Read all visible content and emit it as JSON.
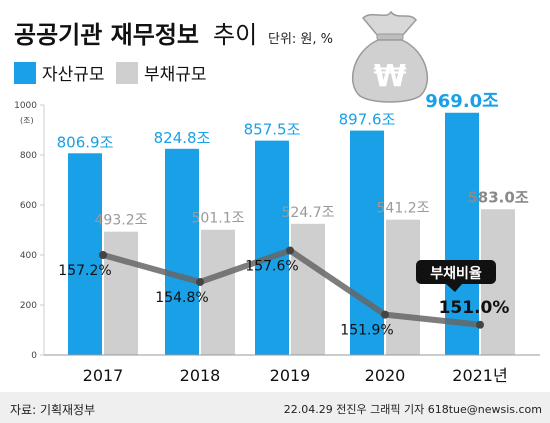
{
  "header": {
    "title_bold": "공공기관 재무정보",
    "title_light": "추이",
    "unit": "단위: 원, %"
  },
  "chart_data": {
    "type": "bar",
    "categories": [
      "2017",
      "2018",
      "2019",
      "2020",
      "2021년"
    ],
    "ylim": [
      0,
      1000
    ],
    "ylabel": "(조)",
    "y_ticks": [
      0,
      200,
      400,
      600,
      800,
      1000
    ],
    "grid": false,
    "legend_position": "top-left",
    "series": [
      {
        "name": "자산규모",
        "values": [
          806.9,
          824.8,
          857.5,
          897.6,
          969.0
        ],
        "labels": [
          "806.9조",
          "824.8조",
          "857.5조",
          "897.6조",
          "969.0조"
        ],
        "color": "#1aa0e6"
      },
      {
        "name": "부채규모",
        "values": [
          493.2,
          501.1,
          524.7,
          541.2,
          583.0
        ],
        "labels": [
          "493.2조",
          "501.1조",
          "524.7조",
          "541.2조",
          "583.0조"
        ],
        "color": "#cfcfcf"
      }
    ],
    "ratio_line": {
      "name": "부채비율",
      "values": [
        157.2,
        154.8,
        157.6,
        151.9,
        151.0
      ],
      "labels": [
        "157.2%",
        "154.8%",
        "157.6%",
        "151.9%",
        "151.0%"
      ],
      "color": "#666666"
    }
  },
  "footer": {
    "source": "자료: 기획재정부",
    "credit": "22.04.29 전진우 그래픽 기자 618tue@newsis.com"
  },
  "icon": {
    "name": "money-bag-icon",
    "symbol": "₩"
  }
}
